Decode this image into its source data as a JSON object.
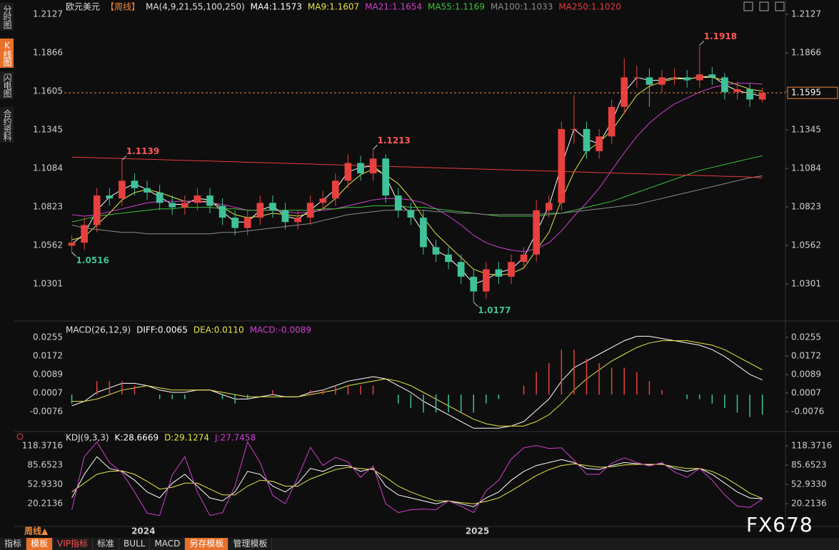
{
  "chart_data": [
    {
      "type": "candlestick",
      "title": "欧元美元",
      "period": "【周线】",
      "indicator": "MA(4,9,21,55,100,250)",
      "up_color": "#e8403f",
      "down_color": "#3fc29a",
      "xlim": [
        -0.6,
        55.7
      ],
      "ylim": [
        1.0074,
        1.2166
      ],
      "yticks": [
        1.2127,
        1.1866,
        1.1605,
        1.1345,
        1.1084,
        1.0823,
        1.0562,
        1.0301
      ],
      "open": [
        1.056,
        1.058,
        1.07,
        1.09,
        1.088,
        1.1,
        1.095,
        1.092,
        1.085,
        1.082,
        1.085,
        1.09,
        1.083,
        1.075,
        1.068,
        1.075,
        1.085,
        1.08,
        1.072,
        1.075,
        1.085,
        1.088,
        1.1,
        1.112,
        1.105,
        1.115,
        1.09,
        1.08,
        1.075,
        1.055,
        1.05,
        1.045,
        1.035,
        1.025,
        1.04,
        1.035,
        1.045,
        1.05,
        1.08,
        1.085,
        1.135,
        1.135,
        1.12,
        1.13,
        1.15,
        1.17,
        1.17,
        1.165,
        1.17,
        1.17,
        1.168,
        1.172,
        1.17,
        1.16,
        1.162,
        1.155
      ],
      "high": [
        1.063,
        1.075,
        1.095,
        1.095,
        1.1139,
        1.105,
        1.1,
        1.097,
        1.09,
        1.09,
        1.095,
        1.095,
        1.088,
        1.08,
        1.08,
        1.09,
        1.09,
        1.085,
        1.08,
        1.09,
        1.093,
        1.105,
        1.118,
        1.117,
        1.1213,
        1.118,
        1.095,
        1.085,
        1.08,
        1.06,
        1.055,
        1.05,
        1.04,
        1.045,
        1.045,
        1.05,
        1.055,
        1.087,
        1.09,
        1.14,
        1.158,
        1.14,
        1.135,
        1.155,
        1.183,
        1.178,
        1.176,
        1.175,
        1.176,
        1.175,
        1.1918,
        1.177,
        1.173,
        1.167,
        1.166,
        1.163
      ],
      "low": [
        1.0516,
        1.053,
        1.065,
        1.083,
        1.083,
        1.09,
        1.087,
        1.08,
        1.077,
        1.077,
        1.08,
        1.078,
        1.07,
        1.063,
        1.063,
        1.07,
        1.075,
        1.067,
        1.067,
        1.07,
        1.08,
        1.083,
        1.095,
        1.1,
        1.1,
        1.085,
        1.075,
        1.07,
        1.05,
        1.045,
        1.04,
        1.03,
        1.0177,
        1.02,
        1.03,
        1.03,
        1.04,
        1.045,
        1.075,
        1.08,
        1.125,
        1.115,
        1.115,
        1.125,
        1.145,
        1.163,
        1.15,
        1.16,
        1.165,
        1.163,
        1.163,
        1.165,
        1.155,
        1.155,
        1.15,
        1.153
      ],
      "close": [
        1.058,
        1.07,
        1.09,
        1.088,
        1.1,
        1.095,
        1.092,
        1.085,
        1.082,
        1.085,
        1.09,
        1.083,
        1.075,
        1.068,
        1.075,
        1.085,
        1.08,
        1.072,
        1.075,
        1.085,
        1.088,
        1.1,
        1.112,
        1.105,
        1.115,
        1.09,
        1.08,
        1.075,
        1.055,
        1.05,
        1.045,
        1.035,
        1.025,
        1.04,
        1.035,
        1.045,
        1.05,
        1.08,
        1.085,
        1.135,
        1.135,
        1.12,
        1.13,
        1.15,
        1.17,
        1.17,
        1.165,
        1.17,
        1.17,
        1.168,
        1.172,
        1.17,
        1.16,
        1.162,
        1.155,
        1.1595
      ],
      "last_price": 1.1595,
      "last_price_color": "#f0883e",
      "annotations": [
        {
          "x": 4,
          "value": 1.1139,
          "color": "#ff5a5a",
          "side": "high"
        },
        {
          "x": 24,
          "value": 1.1213,
          "color": "#ff5a5a",
          "side": "high"
        },
        {
          "x": 50,
          "value": 1.1918,
          "color": "#ff5a5a",
          "side": "high"
        },
        {
          "x": 0,
          "value": 1.0516,
          "color": "#3fc29a",
          "side": "low"
        },
        {
          "x": 32,
          "value": 1.0177,
          "color": "#3fc29a",
          "side": "low"
        }
      ],
      "series": [
        {
          "name": "MA4:1.1573",
          "color": "#ffffff",
          "values": [
            1.057,
            1.064,
            1.08,
            1.089,
            1.094,
            1.098,
            1.094,
            1.089,
            1.084,
            1.084,
            1.088,
            1.087,
            1.079,
            1.072,
            1.072,
            1.08,
            1.083,
            1.076,
            1.074,
            1.08,
            1.087,
            1.094,
            1.106,
            1.109,
            1.11,
            1.103,
            1.085,
            1.078,
            1.065,
            1.053,
            1.048,
            1.04,
            1.03,
            1.033,
            1.038,
            1.04,
            1.048,
            1.065,
            1.083,
            1.11,
            1.135,
            1.128,
            1.125,
            1.14,
            1.16,
            1.17,
            1.168,
            1.168,
            1.17,
            1.169,
            1.17,
            1.171,
            1.165,
            1.161,
            1.159,
            1.1573
          ]
        },
        {
          "name": "MA9:1.1607",
          "color": "#e6e64a",
          "values": [
            1.06,
            1.062,
            1.07,
            1.078,
            1.087,
            1.092,
            1.094,
            1.092,
            1.089,
            1.086,
            1.086,
            1.086,
            1.082,
            1.077,
            1.075,
            1.076,
            1.078,
            1.077,
            1.076,
            1.078,
            1.081,
            1.088,
            1.097,
            1.104,
            1.108,
            1.104,
            1.098,
            1.088,
            1.075,
            1.064,
            1.056,
            1.048,
            1.04,
            1.037,
            1.036,
            1.037,
            1.041,
            1.053,
            1.065,
            1.087,
            1.106,
            1.12,
            1.126,
            1.134,
            1.146,
            1.158,
            1.164,
            1.167,
            1.169,
            1.169,
            1.17,
            1.17,
            1.168,
            1.165,
            1.162,
            1.1607
          ]
        },
        {
          "name": "MA21:1.1654",
          "color": "#d23fd2",
          "values": [
            1.077,
            1.076,
            1.077,
            1.079,
            1.081,
            1.083,
            1.085,
            1.086,
            1.086,
            1.086,
            1.086,
            1.085,
            1.084,
            1.082,
            1.08,
            1.08,
            1.08,
            1.079,
            1.078,
            1.079,
            1.08,
            1.081,
            1.083,
            1.085,
            1.087,
            1.088,
            1.088,
            1.087,
            1.085,
            1.081,
            1.076,
            1.07,
            1.063,
            1.058,
            1.055,
            1.053,
            1.052,
            1.054,
            1.058,
            1.066,
            1.076,
            1.085,
            1.095,
            1.107,
            1.119,
            1.13,
            1.139,
            1.146,
            1.152,
            1.156,
            1.16,
            1.163,
            1.165,
            1.166,
            1.166,
            1.1654
          ]
        },
        {
          "name": "MA55:1.1169",
          "color": "#3cc23c",
          "values": [
            1.072,
            1.074,
            1.076,
            1.077,
            1.078,
            1.079,
            1.08,
            1.081,
            1.081,
            1.082,
            1.082,
            1.082,
            1.081,
            1.081,
            1.08,
            1.08,
            1.08,
            1.08,
            1.08,
            1.08,
            1.081,
            1.081,
            1.082,
            1.082,
            1.083,
            1.083,
            1.083,
            1.082,
            1.082,
            1.081,
            1.08,
            1.079,
            1.078,
            1.077,
            1.076,
            1.076,
            1.076,
            1.076,
            1.077,
            1.078,
            1.08,
            1.082,
            1.084,
            1.086,
            1.089,
            1.092,
            1.095,
            1.098,
            1.101,
            1.104,
            1.107,
            1.109,
            1.111,
            1.113,
            1.115,
            1.1169
          ]
        },
        {
          "name": "MA100:1.1033",
          "color": "#8c8c8c",
          "values": [
            1.07,
            1.068,
            1.067,
            1.066,
            1.065,
            1.065,
            1.064,
            1.064,
            1.064,
            1.064,
            1.064,
            1.064,
            1.065,
            1.065,
            1.066,
            1.067,
            1.068,
            1.069,
            1.07,
            1.071,
            1.073,
            1.075,
            1.077,
            1.078,
            1.079,
            1.08,
            1.08,
            1.08,
            1.08,
            1.079,
            1.079,
            1.078,
            1.078,
            1.077,
            1.077,
            1.077,
            1.077,
            1.077,
            1.078,
            1.078,
            1.079,
            1.08,
            1.081,
            1.082,
            1.083,
            1.084,
            1.086,
            1.088,
            1.09,
            1.092,
            1.094,
            1.096,
            1.098,
            1.1,
            1.102,
            1.1033
          ]
        },
        {
          "name": "MA250:1.1020",
          "color": "#e83a3a",
          "values": [
            1.116,
            1.1158,
            1.1155,
            1.1153,
            1.115,
            1.1148,
            1.1145,
            1.1143,
            1.114,
            1.1138,
            1.1135,
            1.1133,
            1.113,
            1.1128,
            1.1125,
            1.1123,
            1.112,
            1.1118,
            1.1115,
            1.1113,
            1.111,
            1.1108,
            1.1105,
            1.1103,
            1.11,
            1.1098,
            1.1095,
            1.1093,
            1.109,
            1.1088,
            1.1085,
            1.1083,
            1.108,
            1.1078,
            1.1075,
            1.1073,
            1.107,
            1.1068,
            1.1065,
            1.1063,
            1.106,
            1.1058,
            1.1055,
            1.1053,
            1.105,
            1.1048,
            1.1045,
            1.1043,
            1.104,
            1.1038,
            1.1035,
            1.1033,
            1.103,
            1.1028,
            1.1025,
            1.102
          ]
        }
      ]
    },
    {
      "type": "macd",
      "title": "MACD(26,12,9)",
      "xlim": [
        -0.6,
        55.7
      ],
      "ylim": [
        -0.0149,
        0.0312
      ],
      "yticks": [
        0.0255,
        0.0172,
        0.0089,
        0.0007,
        -0.0076
      ],
      "series": [
        {
          "name": "DIFF:0.0065",
          "color": "#ffffff",
          "values": [
            -0.005,
            -0.003,
            0.001,
            0.003,
            0.005,
            0.005,
            0.004,
            0.002,
            0.001,
            0.001,
            0.002,
            0.002,
            0.0,
            -0.002,
            -0.002,
            -0.001,
            0.0,
            -0.001,
            -0.001,
            0.001,
            0.002,
            0.004,
            0.006,
            0.007,
            0.008,
            0.007,
            0.004,
            0.001,
            -0.003,
            -0.006,
            -0.009,
            -0.012,
            -0.015,
            -0.015,
            -0.015,
            -0.014,
            -0.012,
            -0.007,
            -0.002,
            0.006,
            0.012,
            0.015,
            0.018,
            0.021,
            0.024,
            0.026,
            0.026,
            0.025,
            0.024,
            0.023,
            0.022,
            0.02,
            0.017,
            0.013,
            0.009,
            0.0065
          ]
        },
        {
          "name": "DEA:0.0110",
          "color": "#e6e64a",
          "values": [
            -0.003,
            -0.003,
            -0.002,
            0.0,
            0.002,
            0.003,
            0.004,
            0.003,
            0.002,
            0.002,
            0.002,
            0.002,
            0.001,
            0.0,
            -0.001,
            -0.001,
            -0.001,
            -0.001,
            -0.001,
            0.0,
            0.001,
            0.002,
            0.004,
            0.005,
            0.006,
            0.007,
            0.006,
            0.004,
            0.001,
            -0.002,
            -0.005,
            -0.008,
            -0.011,
            -0.013,
            -0.014,
            -0.014,
            -0.014,
            -0.012,
            -0.009,
            -0.004,
            0.002,
            0.007,
            0.011,
            0.015,
            0.018,
            0.021,
            0.023,
            0.024,
            0.024,
            0.024,
            0.023,
            0.022,
            0.02,
            0.017,
            0.014,
            0.011
          ]
        },
        {
          "name": "MACD:-0.0089",
          "color": "#d23fd2",
          "type": "histogram",
          "up_color": "#e8403f",
          "down_color": "#3fc29a",
          "values": [
            -0.004,
            0,
            0.006,
            0.006,
            0.006,
            0.004,
            0,
            -0.002,
            -0.002,
            -0.002,
            0,
            0,
            -0.002,
            -0.004,
            -0.002,
            0,
            0.002,
            0,
            0,
            0.002,
            0.002,
            0.004,
            0.004,
            0.004,
            0.004,
            0,
            -0.004,
            -0.006,
            -0.008,
            -0.008,
            -0.008,
            -0.008,
            -0.008,
            -0.004,
            -0.002,
            0,
            0.004,
            0.01,
            0.014,
            0.02,
            0.02,
            0.016,
            0.014,
            0.012,
            0.012,
            0.01,
            0.006,
            0.002,
            0,
            -0.002,
            -0.002,
            -0.004,
            -0.006,
            -0.008,
            -0.01,
            -0.0089
          ]
        }
      ]
    },
    {
      "type": "kdj",
      "title": "KDJ(9,3,3)",
      "xlim": [
        -0.6,
        55.7
      ],
      "ylim": [
        -14.9,
        126.9
      ],
      "yticks": [
        118.3716,
        85.6523,
        {
          "value": 52.933,
          "label": "52.9330"
        },
        20.2136
      ],
      "xticks": [
        {
          "value": 5.7,
          "label": "2024"
        },
        {
          "value": 32.3,
          "label": "2025"
        }
      ],
      "series": [
        {
          "name": "K:28.6669",
          "color": "#ffffff",
          "values": [
            30,
            70,
            100,
            80,
            75,
            60,
            40,
            30,
            55,
            70,
            50,
            30,
            25,
            40,
            75,
            70,
            50,
            40,
            55,
            80,
            75,
            85,
            85,
            75,
            80,
            50,
            35,
            30,
            25,
            20,
            25,
            20,
            15,
            30,
            40,
            60,
            75,
            85,
            90,
            95,
            90,
            80,
            78,
            85,
            90,
            88,
            86,
            88,
            80,
            75,
            80,
            70,
            55,
            40,
            30,
            28.6669
          ]
        },
        {
          "name": "D:29.1274",
          "color": "#e6e64a",
          "values": [
            40,
            55,
            70,
            75,
            76,
            70,
            58,
            45,
            48,
            55,
            55,
            45,
            35,
            35,
            50,
            60,
            58,
            50,
            50,
            62,
            70,
            78,
            82,
            80,
            78,
            65,
            50,
            40,
            32,
            25,
            25,
            22,
            20,
            24,
            30,
            42,
            55,
            68,
            78,
            85,
            88,
            85,
            82,
            83,
            86,
            87,
            87,
            87,
            83,
            80,
            80,
            75,
            65,
            52,
            38,
            29.1274
          ]
        },
        {
          "name": "J:27.7458",
          "color": "#d23fd2",
          "values": [
            10,
            100,
            125,
            90,
            73,
            40,
            4,
            0,
            69,
            100,
            40,
            0,
            5,
            50,
            125,
            90,
            34,
            20,
            65,
            116,
            85,
            99,
            91,
            65,
            84,
            20,
            5,
            10,
            11,
            10,
            25,
            16,
            5,
            42,
            60,
            96,
            115,
            119,
            114,
            115,
            94,
            70,
            70,
            89,
            98,
            90,
            84,
            90,
            74,
            65,
            80,
            60,
            35,
            16,
            14,
            27.7458
          ]
        }
      ]
    }
  ],
  "ui": {
    "sidebar": [
      "分时图",
      "K线图",
      "闪电图",
      "合约资料"
    ],
    "period_label": "周线▲",
    "toolbar": [
      "指标",
      "模板",
      "VIP指标",
      "标准",
      "BULL",
      "MACD",
      "另存模板",
      "管理模板"
    ],
    "watermark": "FX678"
  }
}
